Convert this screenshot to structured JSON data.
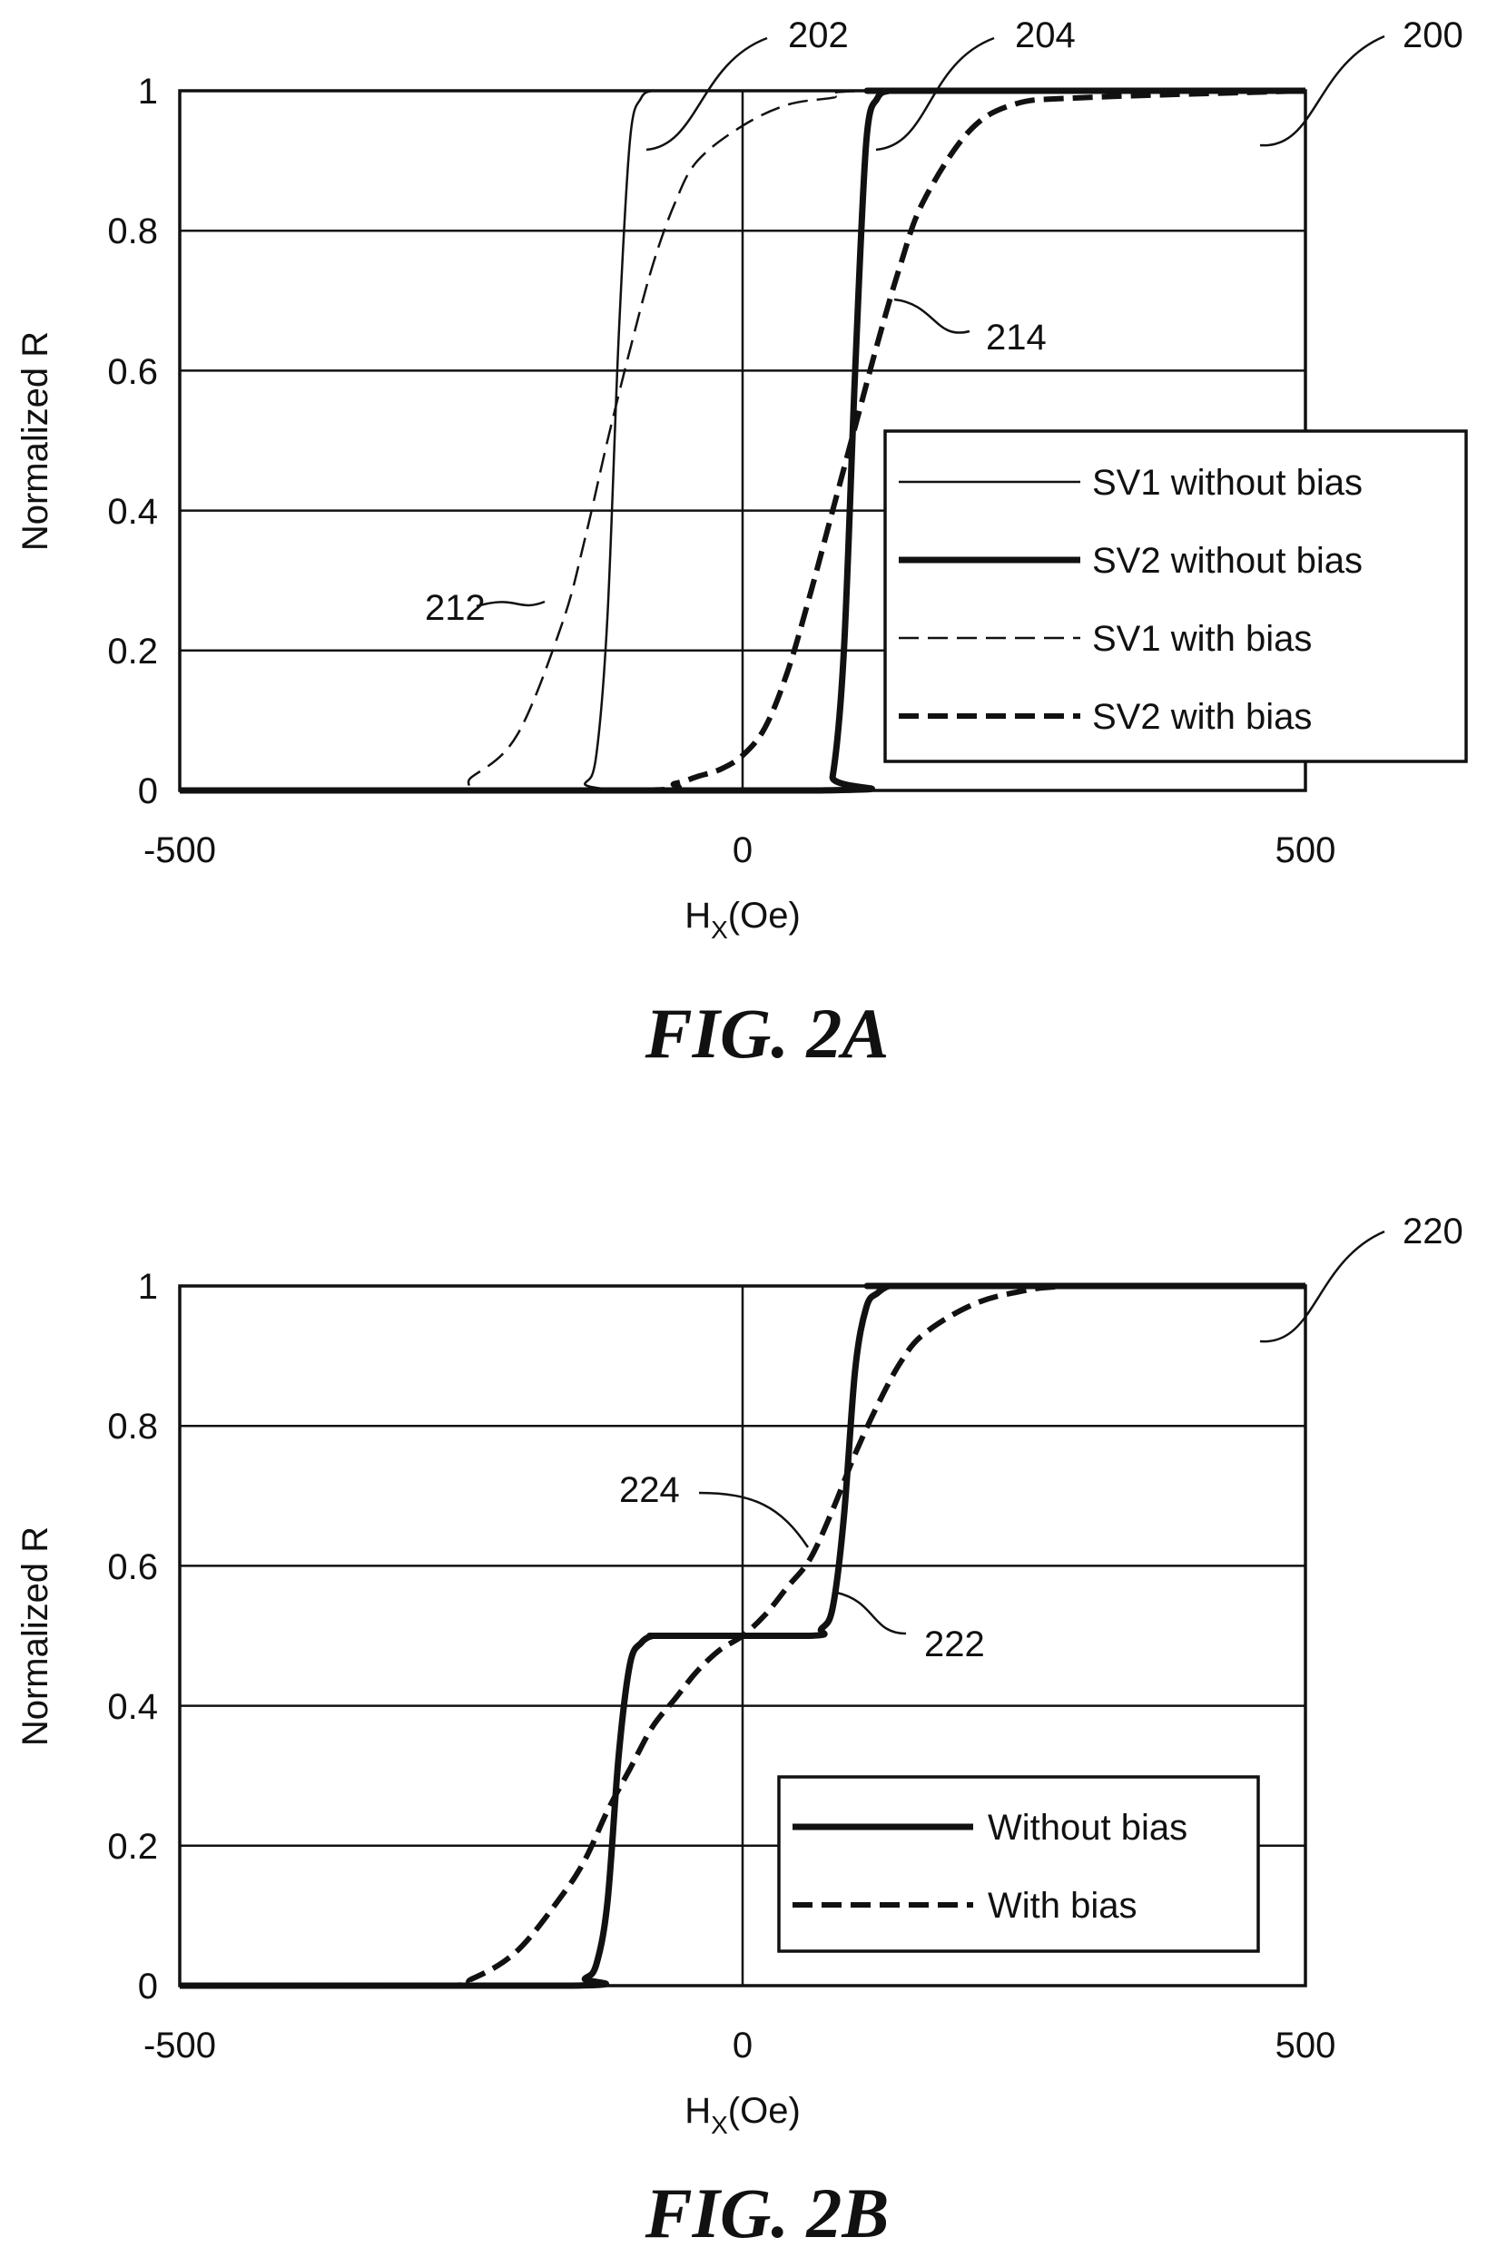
{
  "chart_data": [
    {
      "id": "fig2a",
      "type": "line",
      "caption": "FIG. 2A",
      "figure_ref": "200",
      "xlabel_main": "H",
      "xlabel_sub": "X",
      "xlabel_unit": "(Oe)",
      "ylabel": "Normalized R",
      "xlim": [
        -500,
        500
      ],
      "ylim": [
        0,
        1
      ],
      "x_ticks": [
        "-500",
        "0",
        "500"
      ],
      "y_ticks": [
        "0",
        "0.2",
        "0.4",
        "0.6",
        "0.8",
        "1"
      ],
      "grid": "horizontal",
      "legend_position": "bottom-right",
      "series": [
        {
          "name": "SV1 without bias",
          "ref": "202",
          "style": "thin-solid",
          "x": [
            -500,
            -150,
            -140,
            -130,
            -120,
            -110,
            -100,
            -90,
            -80,
            -70,
            500
          ],
          "y": [
            0,
            0,
            0.01,
            0.05,
            0.25,
            0.65,
            0.93,
            0.99,
            1,
            1,
            1
          ]
        },
        {
          "name": "SV2 without bias",
          "ref": "204",
          "style": "thick-solid",
          "x": [
            -500,
            70,
            80,
            90,
            100,
            110,
            120,
            130,
            140,
            500
          ],
          "y": [
            0,
            0,
            0.02,
            0.2,
            0.6,
            0.93,
            0.99,
            1,
            1,
            1
          ]
        },
        {
          "name": "SV1 with bias",
          "ref": "212",
          "style": "thin-dashed",
          "x": [
            -500,
            -270,
            -240,
            -200,
            -160,
            -140,
            -120,
            -100,
            -80,
            -60,
            -40,
            0,
            40,
            80,
            120,
            500
          ],
          "y": [
            0,
            0,
            0.02,
            0.08,
            0.24,
            0.36,
            0.5,
            0.63,
            0.75,
            0.84,
            0.9,
            0.95,
            0.98,
            0.99,
            1,
            1
          ]
        },
        {
          "name": "SV2 with bias",
          "ref": "214",
          "style": "thick-dashed",
          "x": [
            -500,
            -100,
            -60,
            -40,
            -20,
            0,
            20,
            40,
            60,
            80,
            100,
            120,
            140,
            160,
            200,
            240,
            300,
            500
          ],
          "y": [
            0,
            0,
            0.01,
            0.02,
            0.03,
            0.05,
            0.09,
            0.17,
            0.28,
            0.4,
            0.52,
            0.64,
            0.75,
            0.84,
            0.94,
            0.98,
            0.99,
            1
          ]
        }
      ]
    },
    {
      "id": "fig2b",
      "type": "line",
      "caption": "FIG. 2B",
      "figure_ref": "220",
      "xlabel_main": "H",
      "xlabel_sub": "X",
      "xlabel_unit": "(Oe)",
      "ylabel": "Normalized R",
      "xlim": [
        -500,
        500
      ],
      "ylim": [
        0,
        1
      ],
      "x_ticks": [
        "-500",
        "0",
        "500"
      ],
      "y_ticks": [
        "0",
        "0.2",
        "0.4",
        "0.6",
        "0.8",
        "1"
      ],
      "grid": "horizontal",
      "legend_position": "bottom-right",
      "series": [
        {
          "name": "Without bias",
          "ref": "222",
          "style": "thick-solid",
          "x": [
            -500,
            -150,
            -140,
            -130,
            -120,
            -110,
            -100,
            -90,
            -80,
            -70,
            60,
            70,
            80,
            90,
            100,
            110,
            120,
            130,
            140,
            500
          ],
          "y": [
            0,
            0,
            0.01,
            0.03,
            0.12,
            0.33,
            0.46,
            0.49,
            0.5,
            0.5,
            0.5,
            0.51,
            0.54,
            0.67,
            0.88,
            0.97,
            0.99,
            1,
            1,
            1
          ]
        },
        {
          "name": "With bias",
          "ref": "224",
          "style": "thick-dashed",
          "x": [
            -500,
            -270,
            -240,
            -200,
            -160,
            -140,
            -120,
            -100,
            -80,
            -60,
            -40,
            -20,
            0,
            20,
            40,
            60,
            80,
            100,
            120,
            140,
            160,
            200,
            240,
            300,
            500
          ],
          "y": [
            0,
            0,
            0.01,
            0.05,
            0.13,
            0.18,
            0.25,
            0.31,
            0.37,
            0.41,
            0.45,
            0.48,
            0.5,
            0.53,
            0.57,
            0.61,
            0.68,
            0.76,
            0.83,
            0.89,
            0.93,
            0.97,
            0.99,
            1,
            1
          ]
        }
      ]
    }
  ]
}
